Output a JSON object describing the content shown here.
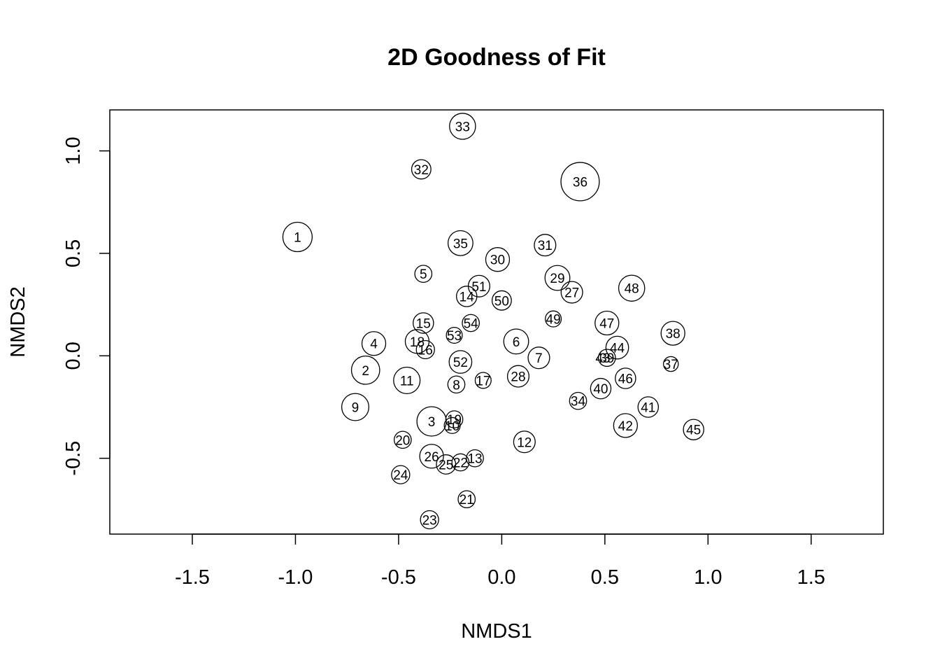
{
  "chart_data": {
    "type": "scatter",
    "title": "2D Goodness of Fit",
    "xlabel": "NMDS1",
    "ylabel": "NMDS2",
    "xlim": [
      -1.9,
      1.85
    ],
    "ylim": [
      -0.87,
      1.2
    ],
    "xticks": [
      -1.5,
      -1.0,
      -0.5,
      0.0,
      0.5,
      1.0,
      1.5
    ],
    "xtick_labels": [
      "-1.5",
      "-1.0",
      "-0.5",
      "0.0",
      "0.5",
      "1.0",
      "1.5"
    ],
    "yticks": [
      -0.5,
      0.0,
      0.5,
      1.0
    ],
    "ytick_labels": [
      "-0.5",
      "0.0",
      "0.5",
      "1.0"
    ],
    "grid": false,
    "legend": "none",
    "marker": "open circle, size proportional to goodness of fit",
    "points": [
      {
        "label": "1",
        "x": -0.99,
        "y": 0.58,
        "fit": 1.0
      },
      {
        "label": "2",
        "x": -0.66,
        "y": -0.07,
        "fit": 0.95
      },
      {
        "label": "3",
        "x": -0.34,
        "y": -0.32,
        "fit": 1.0
      },
      {
        "label": "4",
        "x": -0.62,
        "y": 0.06,
        "fit": 0.75
      },
      {
        "label": "5",
        "x": -0.38,
        "y": 0.4,
        "fit": 0.45
      },
      {
        "label": "6",
        "x": 0.07,
        "y": 0.07,
        "fit": 0.8
      },
      {
        "label": "7",
        "x": 0.18,
        "y": -0.01,
        "fit": 0.65
      },
      {
        "label": "8",
        "x": -0.22,
        "y": -0.14,
        "fit": 0.45
      },
      {
        "label": "9",
        "x": -0.71,
        "y": -0.25,
        "fit": 0.9
      },
      {
        "label": "10",
        "x": -0.24,
        "y": -0.34,
        "fit": 0.4
      },
      {
        "label": "11",
        "x": -0.46,
        "y": -0.12,
        "fit": 0.87
      },
      {
        "label": "12",
        "x": 0.11,
        "y": -0.42,
        "fit": 0.65
      },
      {
        "label": "13",
        "x": -0.13,
        "y": -0.5,
        "fit": 0.45
      },
      {
        "label": "14",
        "x": -0.17,
        "y": 0.29,
        "fit": 0.6
      },
      {
        "label": "15",
        "x": -0.38,
        "y": 0.16,
        "fit": 0.6
      },
      {
        "label": "16",
        "x": -0.37,
        "y": 0.03,
        "fit": 0.5
      },
      {
        "label": "17",
        "x": -0.09,
        "y": -0.12,
        "fit": 0.4
      },
      {
        "label": "18",
        "x": -0.41,
        "y": 0.07,
        "fit": 0.75
      },
      {
        "label": "19",
        "x": -0.23,
        "y": -0.31,
        "fit": 0.45
      },
      {
        "label": "20",
        "x": -0.48,
        "y": -0.41,
        "fit": 0.45
      },
      {
        "label": "21",
        "x": -0.17,
        "y": -0.7,
        "fit": 0.45
      },
      {
        "label": "22",
        "x": -0.2,
        "y": -0.52,
        "fit": 0.45
      },
      {
        "label": "23",
        "x": -0.35,
        "y": -0.8,
        "fit": 0.5
      },
      {
        "label": "24",
        "x": -0.49,
        "y": -0.58,
        "fit": 0.5
      },
      {
        "label": "25",
        "x": -0.27,
        "y": -0.53,
        "fit": 0.55
      },
      {
        "label": "26",
        "x": -0.34,
        "y": -0.49,
        "fit": 0.75
      },
      {
        "label": "27",
        "x": 0.34,
        "y": 0.31,
        "fit": 0.65
      },
      {
        "label": "28",
        "x": 0.08,
        "y": -0.1,
        "fit": 0.65
      },
      {
        "label": "29",
        "x": 0.27,
        "y": 0.38,
        "fit": 0.8
      },
      {
        "label": "30",
        "x": -0.02,
        "y": 0.47,
        "fit": 0.75
      },
      {
        "label": "31",
        "x": 0.21,
        "y": 0.54,
        "fit": 0.65
      },
      {
        "label": "32",
        "x": -0.39,
        "y": 0.91,
        "fit": 0.55
      },
      {
        "label": "33",
        "x": -0.19,
        "y": 1.12,
        "fit": 0.85
      },
      {
        "label": "34",
        "x": 0.37,
        "y": -0.22,
        "fit": 0.45
      },
      {
        "label": "35",
        "x": -0.2,
        "y": 0.55,
        "fit": 0.8
      },
      {
        "label": "36",
        "x": 0.38,
        "y": 0.85,
        "fit": 1.4
      },
      {
        "label": "37",
        "x": 0.82,
        "y": -0.04,
        "fit": 0.35
      },
      {
        "label": "38",
        "x": 0.83,
        "y": 0.11,
        "fit": 0.75
      },
      {
        "label": "39",
        "x": 0.51,
        "y": -0.01,
        "fit": 0.45
      },
      {
        "label": "40",
        "x": 0.48,
        "y": -0.16,
        "fit": 0.6
      },
      {
        "label": "41",
        "x": 0.71,
        "y": -0.25,
        "fit": 0.6
      },
      {
        "label": "42",
        "x": 0.6,
        "y": -0.34,
        "fit": 0.75
      },
      {
        "label": "43",
        "x": 0.49,
        "y": -0.01,
        "fit": 0.0
      },
      {
        "label": "44",
        "x": 0.56,
        "y": 0.04,
        "fit": 0.7
      },
      {
        "label": "45",
        "x": 0.93,
        "y": -0.36,
        "fit": 0.6
      },
      {
        "label": "46",
        "x": 0.6,
        "y": -0.11,
        "fit": 0.6
      },
      {
        "label": "47",
        "x": 0.51,
        "y": 0.16,
        "fit": 0.75
      },
      {
        "label": "48",
        "x": 0.63,
        "y": 0.33,
        "fit": 0.85
      },
      {
        "label": "49",
        "x": 0.25,
        "y": 0.18,
        "fit": 0.4
      },
      {
        "label": "50",
        "x": 0.0,
        "y": 0.27,
        "fit": 0.55
      },
      {
        "label": "51",
        "x": -0.11,
        "y": 0.34,
        "fit": 0.65
      },
      {
        "label": "52",
        "x": -0.2,
        "y": -0.03,
        "fit": 0.7
      },
      {
        "label": "53",
        "x": -0.23,
        "y": 0.1,
        "fit": 0.4
      },
      {
        "label": "54",
        "x": -0.15,
        "y": 0.16,
        "fit": 0.45
      }
    ]
  }
}
